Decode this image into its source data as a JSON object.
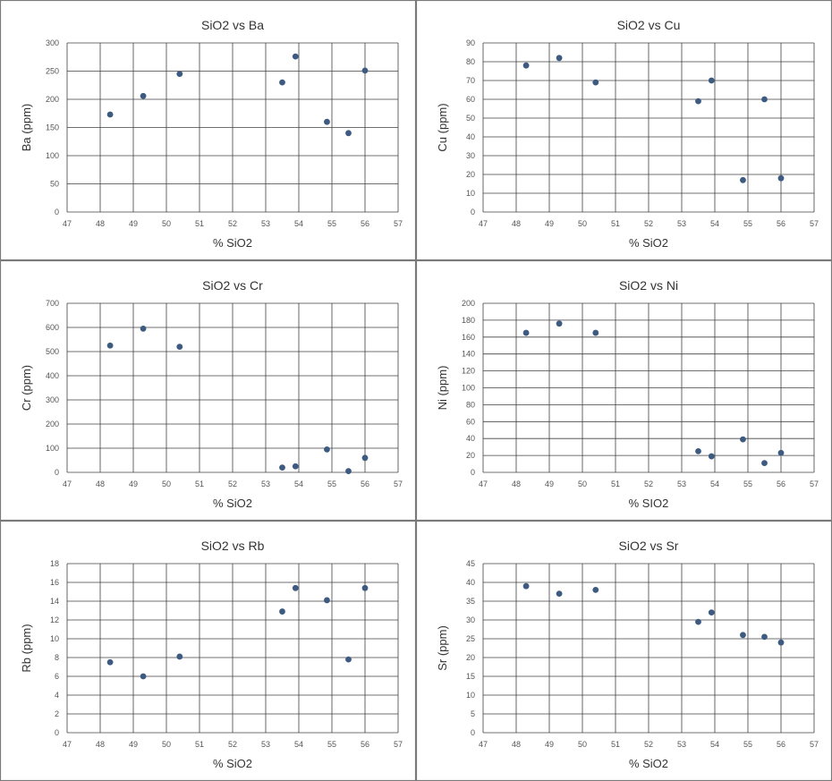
{
  "chart_data": [
    {
      "type": "scatter",
      "title": "SiO2 vs Ba",
      "xlabel": "% SiO2",
      "ylabel": "Ba (ppm)",
      "xlim": [
        47,
        57
      ],
      "ylim": [
        0,
        300
      ],
      "x_ticks": [
        "47",
        "48",
        "49",
        "50",
        "51",
        "52",
        "53",
        "54",
        "55",
        "56",
        "57"
      ],
      "y_ticks": [
        "0",
        "50",
        "100",
        "150",
        "200",
        "250",
        "300"
      ],
      "grid": true,
      "series": [
        {
          "color": "#3d5a80",
          "x": [
            48.3,
            49.3,
            50.4,
            53.5,
            53.9,
            54.85,
            55.5,
            56.0
          ],
          "y": [
            173,
            206,
            245,
            230,
            276,
            160,
            140,
            251
          ]
        }
      ]
    },
    {
      "type": "scatter",
      "title": "SiO2 vs Cu",
      "xlabel": "% SiO2",
      "ylabel": "Cu (ppm)",
      "xlim": [
        47,
        57
      ],
      "ylim": [
        0,
        90
      ],
      "x_ticks": [
        "47",
        "48",
        "49",
        "50",
        "51",
        "52",
        "53",
        "54",
        "55",
        "56",
        "57"
      ],
      "y_ticks": [
        "0",
        "10",
        "20",
        "30",
        "40",
        "50",
        "60",
        "70",
        "80",
        "90"
      ],
      "grid": true,
      "series": [
        {
          "color": "#3d5a80",
          "x": [
            48.3,
            49.3,
            50.4,
            53.5,
            53.9,
            54.85,
            55.5,
            56.0
          ],
          "y": [
            78,
            82,
            69,
            59,
            70,
            17,
            60,
            18
          ]
        }
      ]
    },
    {
      "type": "scatter",
      "title": "SiO2 vs Cr",
      "xlabel": "% SiO2",
      "ylabel": "Cr (ppm)",
      "xlim": [
        47,
        57
      ],
      "ylim": [
        0,
        700
      ],
      "x_ticks": [
        "47",
        "48",
        "49",
        "50",
        "51",
        "52",
        "53",
        "54",
        "55",
        "56",
        "57"
      ],
      "y_ticks": [
        "0",
        "100",
        "200",
        "300",
        "400",
        "500",
        "600",
        "700"
      ],
      "grid": true,
      "series": [
        {
          "color": "#3d5a80",
          "x": [
            48.3,
            49.3,
            50.4,
            53.5,
            53.9,
            54.85,
            55.5,
            56.0
          ],
          "y": [
            525,
            595,
            520,
            20,
            25,
            95,
            5,
            60
          ]
        }
      ]
    },
    {
      "type": "scatter",
      "title": "SiO2 vs Ni",
      "xlabel": "% SIO2",
      "ylabel": "Ni (ppm)",
      "xlim": [
        47,
        57
      ],
      "ylim": [
        0,
        200
      ],
      "x_ticks": [
        "47",
        "48",
        "49",
        "50",
        "51",
        "52",
        "53",
        "54",
        "55",
        "56",
        "57"
      ],
      "y_ticks": [
        "0",
        "20",
        "40",
        "60",
        "80",
        "100",
        "120",
        "140",
        "160",
        "180",
        "200"
      ],
      "grid": true,
      "series": [
        {
          "color": "#3d5a80",
          "x": [
            48.3,
            49.3,
            50.4,
            53.5,
            53.9,
            54.85,
            55.5,
            56.0
          ],
          "y": [
            165,
            176,
            165,
            25,
            19,
            39,
            11,
            23
          ]
        }
      ]
    },
    {
      "type": "scatter",
      "title": "SiO2 vs Rb",
      "xlabel": "% SiO2",
      "ylabel": "Rb (ppm)",
      "xlim": [
        47,
        57
      ],
      "ylim": [
        0,
        18
      ],
      "x_ticks": [
        "47",
        "48",
        "49",
        "50",
        "51",
        "52",
        "53",
        "54",
        "55",
        "56",
        "57"
      ],
      "y_ticks": [
        "0",
        "2",
        "4",
        "6",
        "8",
        "10",
        "12",
        "14",
        "16",
        "18"
      ],
      "grid": true,
      "series": [
        {
          "color": "#3d5a80",
          "x": [
            48.3,
            49.3,
            50.4,
            53.5,
            53.9,
            54.85,
            55.5,
            56.0
          ],
          "y": [
            7.5,
            6.0,
            8.1,
            12.9,
            15.4,
            14.1,
            7.8,
            15.4
          ]
        }
      ]
    },
    {
      "type": "scatter",
      "title": "SiO2 vs Sr",
      "xlabel": "% SiO2",
      "ylabel": "Sr (ppm)",
      "xlim": [
        47,
        57
      ],
      "ylim": [
        0,
        45
      ],
      "x_ticks": [
        "47",
        "48",
        "49",
        "50",
        "51",
        "52",
        "53",
        "54",
        "55",
        "56",
        "57"
      ],
      "y_ticks": [
        "0",
        "5",
        "10",
        "15",
        "20",
        "25",
        "30",
        "35",
        "40",
        "45"
      ],
      "grid": true,
      "series": [
        {
          "color": "#3d5a80",
          "x": [
            48.3,
            49.3,
            50.4,
            53.5,
            53.9,
            54.85,
            55.5,
            56.0
          ],
          "y": [
            39,
            37,
            38,
            29.5,
            32,
            26,
            25.5,
            24
          ]
        }
      ]
    }
  ]
}
